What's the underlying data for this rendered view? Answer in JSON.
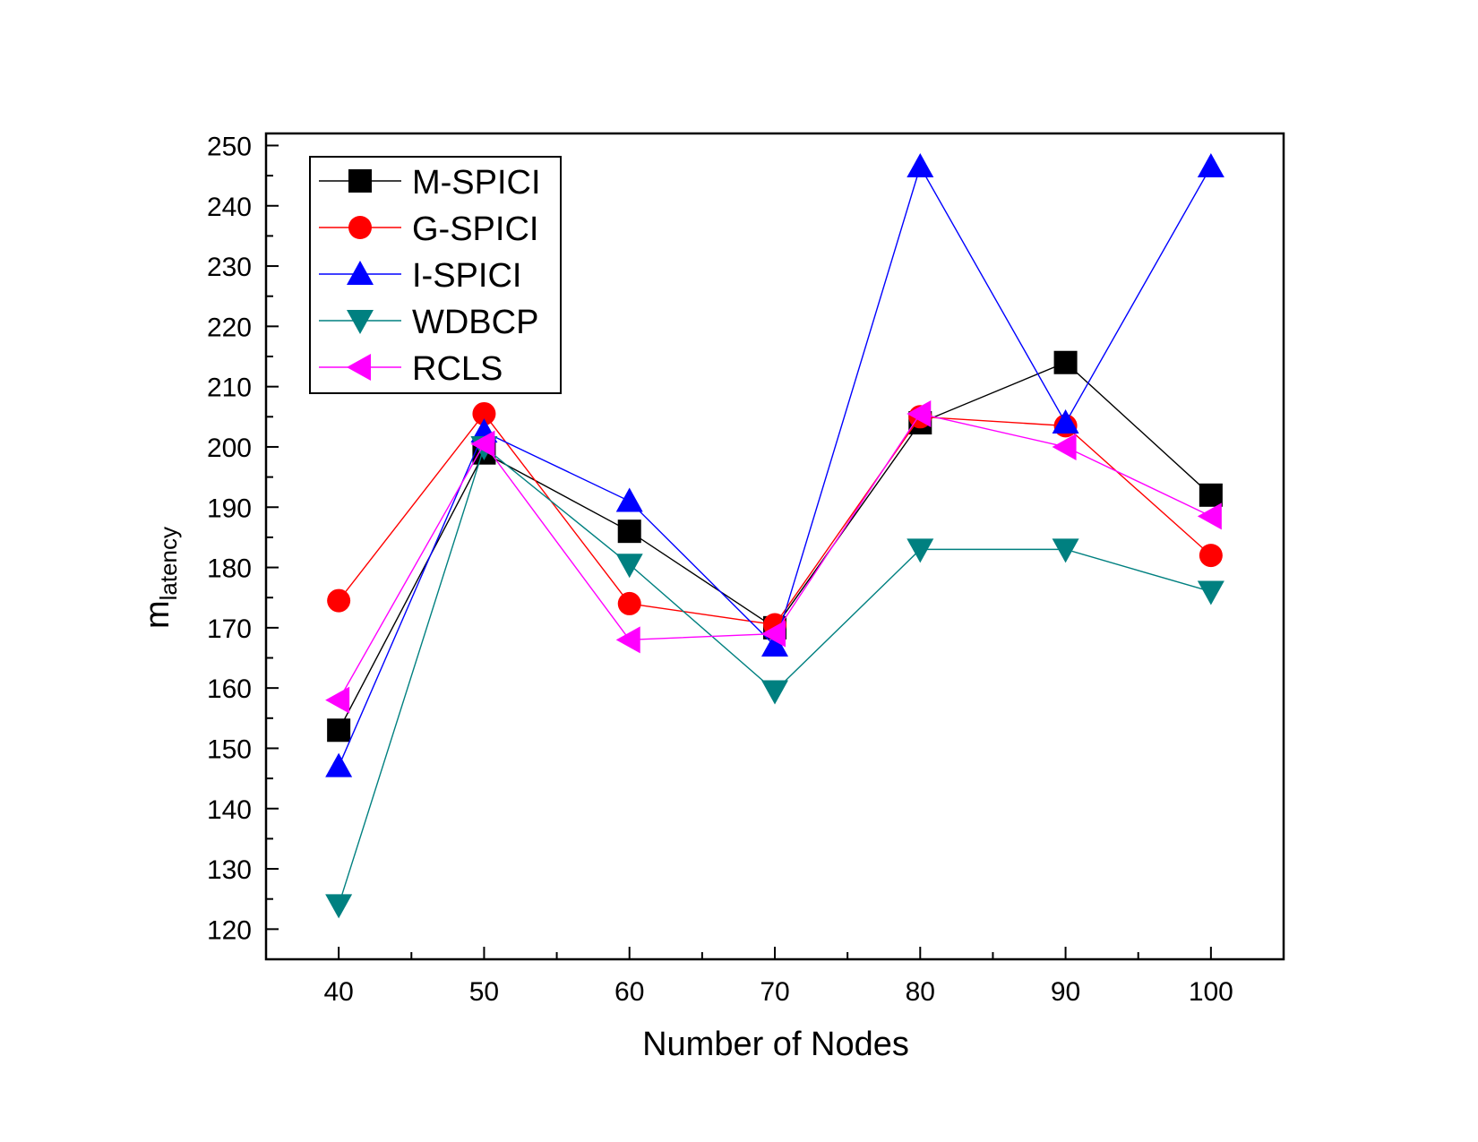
{
  "chart_data": {
    "type": "line",
    "xlabel": "Number of Nodes",
    "ylabel_main": "m",
    "ylabel_sub": "latency",
    "x": [
      40,
      50,
      60,
      70,
      80,
      90,
      100
    ],
    "xlim": [
      35,
      105
    ],
    "ylim": [
      115,
      252
    ],
    "x_ticks": [
      40,
      50,
      60,
      70,
      80,
      90,
      100
    ],
    "y_ticks": [
      120,
      130,
      140,
      150,
      160,
      170,
      180,
      190,
      200,
      210,
      220,
      230,
      240,
      250
    ],
    "grid": false,
    "legend_position": "top-left",
    "series": [
      {
        "name": "M-SPICI",
        "color": "#000000",
        "marker": "square",
        "values": [
          153,
          199,
          186,
          170,
          204,
          214,
          192
        ]
      },
      {
        "name": "G-SPICI",
        "color": "#ff0000",
        "marker": "circle",
        "values": [
          174.5,
          205.5,
          174,
          170.5,
          205,
          203.5,
          182
        ]
      },
      {
        "name": "I-SPICI",
        "color": "#0000ff",
        "marker": "triangle-up",
        "values": [
          147,
          202.5,
          191,
          167,
          246.5,
          204,
          246.5
        ]
      },
      {
        "name": "WDBCP",
        "color": "#008080",
        "marker": "triangle-down",
        "values": [
          124,
          200,
          180.5,
          159.5,
          183,
          183,
          176
        ]
      },
      {
        "name": "RCLS",
        "color": "#ff00ff",
        "marker": "triangle-left",
        "values": [
          158,
          200.5,
          168,
          169,
          205.5,
          200,
          188.5
        ]
      }
    ]
  }
}
